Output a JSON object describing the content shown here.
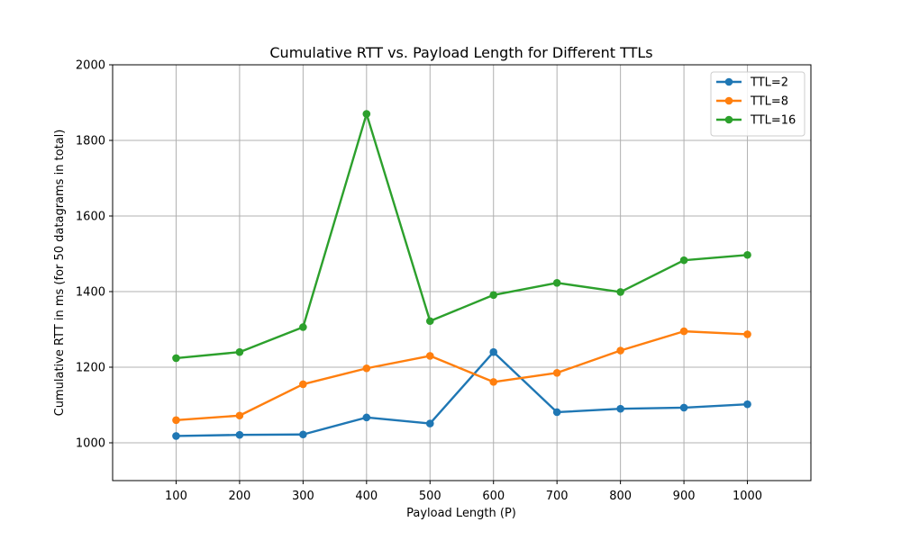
{
  "chart_data": {
    "type": "line",
    "title": "Cumulative RTT vs. Payload Length for Different TTLs",
    "xlabel": "Payload Length (P)",
    "ylabel": "Cumulative RTT in ms (for 50 datagrams in total)",
    "x": [
      100,
      200,
      300,
      400,
      500,
      600,
      700,
      800,
      900,
      1000
    ],
    "xlim": [
      0,
      1100
    ],
    "ylim": [
      900,
      2000
    ],
    "xticks": [
      100,
      200,
      300,
      400,
      500,
      600,
      700,
      800,
      900,
      1000
    ],
    "yticks": [
      1000,
      1200,
      1400,
      1600,
      1800,
      2000
    ],
    "grid": true,
    "legend_position": "top-right",
    "series": [
      {
        "name": "TTL=2",
        "color": "#1f77b4",
        "values": [
          1018,
          1021,
          1022,
          1067,
          1051,
          1240,
          1081,
          1090,
          1093,
          1102
        ]
      },
      {
        "name": "TTL=8",
        "color": "#ff7f0e",
        "values": [
          1060,
          1072,
          1155,
          1197,
          1230,
          1161,
          1185,
          1244,
          1295,
          1287
        ]
      },
      {
        "name": "TTL=16",
        "color": "#2ca02c",
        "values": [
          1224,
          1240,
          1306,
          1870,
          1322,
          1391,
          1423,
          1399,
          1483,
          1497
        ]
      }
    ]
  }
}
